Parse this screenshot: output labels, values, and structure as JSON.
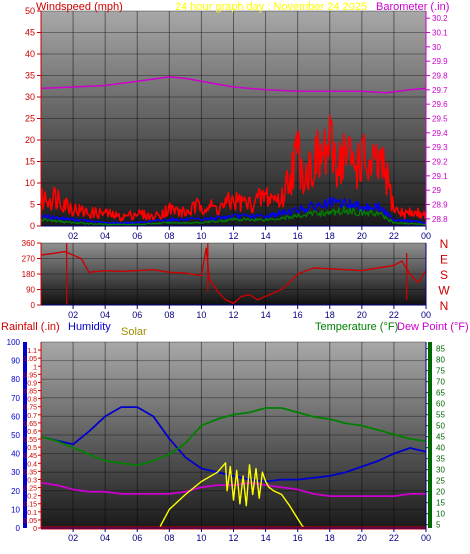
{
  "colors": {
    "windspeed": "#ff0000",
    "wind_mid": "#0000ff",
    "wind_low": "#008000",
    "barometer": "#cc00cc",
    "direction": "#cc0000",
    "compass": "#cc0000",
    "humidity": "#0000cc",
    "solar": "#ffff00",
    "solar_label": "#a09000",
    "temperature": "#008000",
    "dewpoint": "#cc00cc",
    "rainfall": "#cc0000",
    "rain_bar": "#cc0000",
    "left_axis_bar": "#0000cc",
    "right_axis_bar": "#006600",
    "title": "#ffff00",
    "tick_red": "#cc0000",
    "tick_magenta": "#cc00cc",
    "tick_blue": "#0000cc",
    "tick_green": "#006600",
    "tick_dark": "#000080"
  },
  "chart_data": [
    {
      "id": "wind_baro",
      "type": "line",
      "title": "24 hour graph day : November 24 2025",
      "left_label": "Windspeed (mph)",
      "right_label": "Barometer (.in)",
      "x_ticks": [
        "02",
        "04",
        "06",
        "08",
        "10",
        "12",
        "14",
        "16",
        "18",
        "20",
        "22",
        "00"
      ],
      "x_tick_hours": [
        2,
        4,
        6,
        8,
        10,
        12,
        14,
        16,
        18,
        20,
        22,
        24
      ],
      "ylim_left": [
        0,
        50
      ],
      "yticks_left": [
        0,
        5,
        10,
        15,
        20,
        25,
        30,
        35,
        40,
        45,
        50
      ],
      "ylim_right": [
        28.75,
        30.25
      ],
      "yticks_right": [
        "28.8",
        "28.9",
        "29",
        "29.1",
        "29.2",
        "29.3",
        "29.4",
        "29.5",
        "29.6",
        "29.7",
        "29.8",
        "29.9",
        "30",
        "30.1",
        "30.2"
      ],
      "series": [
        {
          "name": "Barometer (.in)",
          "axis": "right",
          "x": [
            0,
            2,
            4,
            6,
            8,
            9,
            10,
            12,
            14,
            16,
            18,
            20,
            21.5,
            23,
            24
          ],
          "y": [
            29.71,
            29.72,
            29.73,
            29.76,
            29.79,
            29.78,
            29.76,
            29.72,
            29.7,
            29.69,
            29.69,
            29.69,
            29.68,
            29.7,
            29.71
          ]
        },
        {
          "name": "Windspeed (mph)",
          "axis": "left",
          "x": [
            0,
            1,
            2,
            3,
            4,
            5,
            6,
            7,
            8,
            9,
            10,
            11,
            12,
            13,
            14,
            15,
            15.5,
            16,
            16.5,
            17,
            17.5,
            18,
            18.5,
            19,
            19.5,
            20,
            20.5,
            21,
            21.5,
            22,
            22.5,
            23,
            24
          ],
          "y": [
            6,
            7,
            4,
            3,
            3,
            2,
            3,
            2,
            4,
            3,
            5,
            4,
            6,
            5,
            7,
            6,
            12,
            17,
            12,
            15,
            16,
            18,
            15,
            17,
            14,
            16,
            13,
            14,
            12,
            4,
            3,
            3,
            3
          ]
        },
        {
          "name": "Wind (average)",
          "axis": "left",
          "x": [
            0,
            2,
            4,
            6,
            8,
            10,
            12,
            14,
            16,
            17,
            18,
            19,
            20,
            21,
            22,
            24
          ],
          "y": [
            3,
            2,
            1,
            1,
            2,
            2,
            3,
            3,
            5,
            6,
            7,
            7,
            6,
            6,
            2,
            1
          ]
        },
        {
          "name": "Wind (low)",
          "axis": "left",
          "x": [
            0,
            2,
            4,
            6,
            8,
            10,
            12,
            14,
            16,
            17,
            18,
            19,
            20,
            21,
            22,
            24
          ],
          "y": [
            2,
            1,
            0.5,
            0.5,
            1,
            1,
            2,
            2,
            3,
            4,
            4,
            5,
            4,
            4,
            1,
            0.5
          ]
        }
      ]
    },
    {
      "id": "direction",
      "type": "line",
      "x_ticks": [
        "02",
        "04",
        "06",
        "08",
        "10",
        "12",
        "14",
        "16",
        "18",
        "20",
        "22",
        "00"
      ],
      "x_tick_hours": [
        2,
        4,
        6,
        8,
        10,
        12,
        14,
        16,
        18,
        20,
        22,
        24
      ],
      "ylim": [
        0,
        360
      ],
      "yticks": [
        0,
        90,
        180,
        270,
        360
      ],
      "compass": [
        "N",
        "W",
        "S",
        "E",
        "N"
      ],
      "series": [
        {
          "name": "Wind direction",
          "x": [
            0,
            0.8,
            1.5,
            2.0,
            2.5,
            3.0,
            4,
            5,
            6,
            7,
            8,
            9,
            10,
            10.3,
            10.5,
            11,
            11.5,
            12,
            12.5,
            13,
            13.5,
            14,
            14.5,
            15,
            15.5,
            16,
            17,
            18,
            19,
            20,
            21,
            22,
            22.5,
            23,
            23.5,
            24
          ],
          "y": [
            290,
            300,
            310,
            290,
            270,
            190,
            200,
            195,
            200,
            205,
            190,
            185,
            170,
            330,
            150,
            80,
            30,
            10,
            50,
            60,
            30,
            50,
            70,
            90,
            130,
            180,
            215,
            210,
            205,
            200,
            215,
            230,
            255,
            180,
            130,
            200
          ]
        }
      ]
    },
    {
      "id": "temp_hum",
      "type": "line",
      "left_label_1": "Rainfall (.in)",
      "left_label_2": "Humidity",
      "solar_label": "Solar",
      "right_label_1": "Temperature (°F)",
      "right_label_2": "Dew Point (°F)",
      "x_ticks": [
        "02",
        "04",
        "06",
        "08",
        "10",
        "12",
        "14",
        "16",
        "18",
        "20",
        "22",
        "00"
      ],
      "x_tick_hours": [
        2,
        4,
        6,
        8,
        10,
        12,
        14,
        16,
        18,
        20,
        22,
        24
      ],
      "ylim_humidity": [
        0,
        100
      ],
      "yticks_humidity": [
        0,
        10,
        20,
        30,
        40,
        50,
        60,
        70,
        80,
        90,
        100
      ],
      "ylim_rain": [
        0,
        1.15
      ],
      "yticks_rain": [
        "0",
        "0.05",
        "0.1",
        "0.15",
        "0.2",
        "0.25",
        "0.3",
        "0.35",
        "0.4",
        "0.45",
        "0.5",
        "0.55",
        "0.6",
        "0.65",
        "0.7",
        "0.75",
        "0.8",
        "0.85",
        "0.9",
        "0.95",
        "1",
        "1.05",
        "1.1"
      ],
      "ylim_temp": [
        3.5,
        88
      ],
      "yticks_temp": [
        5,
        10,
        15,
        20,
        25,
        30,
        35,
        40,
        45,
        50,
        55,
        60,
        65,
        70,
        75,
        80,
        85
      ],
      "series": [
        {
          "name": "Humidity",
          "axis": "humidity",
          "x": [
            0,
            1,
            2,
            3,
            4,
            5,
            6,
            7,
            8,
            9,
            10,
            11,
            12,
            13,
            14,
            15,
            16,
            17,
            18,
            19,
            20,
            21,
            22,
            23,
            24
          ],
          "y": [
            49,
            47,
            45,
            52,
            60,
            65,
            65,
            60,
            48,
            38,
            32,
            30,
            28,
            26,
            25,
            26,
            26,
            27,
            28,
            30,
            33,
            36,
            40,
            43,
            41
          ]
        },
        {
          "name": "Temperature (°F)",
          "axis": "temp",
          "x": [
            0,
            1,
            2,
            3,
            4,
            5,
            6,
            7,
            8,
            9,
            10,
            11,
            12,
            13,
            14,
            15,
            16,
            17,
            18,
            19,
            20,
            21,
            22,
            23,
            24
          ],
          "y": [
            45,
            43,
            40,
            37,
            34,
            33,
            32,
            34,
            37,
            42,
            50,
            53,
            55,
            56,
            58,
            58,
            56,
            54,
            53,
            51,
            50,
            48,
            46,
            44,
            43
          ]
        },
        {
          "name": "Dew Point (°F)",
          "axis": "temp",
          "x": [
            0,
            1,
            2,
            3,
            4,
            5,
            6,
            7,
            8,
            9,
            10,
            11,
            12,
            13,
            14,
            15,
            16,
            17,
            18,
            19,
            20,
            21,
            22,
            23,
            24
          ],
          "y": [
            24,
            23,
            21,
            20,
            20,
            19,
            19,
            19,
            19,
            20,
            22,
            23,
            23,
            24,
            23,
            22,
            21,
            19,
            18,
            18,
            18,
            18,
            18,
            19,
            19
          ]
        },
        {
          "name": "Solar",
          "axis": "humidity",
          "x": [
            0,
            7.4,
            7.5,
            8,
            9,
            10,
            11,
            11.5,
            11.6,
            11.8,
            12,
            12.2,
            12.4,
            12.6,
            12.8,
            13,
            13.2,
            13.4,
            13.6,
            13.8,
            14,
            14.2,
            14.5,
            15,
            15.5,
            16,
            16.3,
            16.5,
            24
          ],
          "y": [
            0,
            0,
            2,
            10,
            18,
            25,
            30,
            35,
            20,
            33,
            15,
            31,
            13,
            28,
            12,
            34,
            18,
            32,
            16,
            30,
            25,
            22,
            20,
            18,
            12,
            5,
            1,
            0,
            0
          ]
        },
        {
          "name": "Rainfall (.in)",
          "axis": "rain",
          "x": [
            0,
            24
          ],
          "y": [
            0,
            0
          ]
        }
      ]
    }
  ]
}
